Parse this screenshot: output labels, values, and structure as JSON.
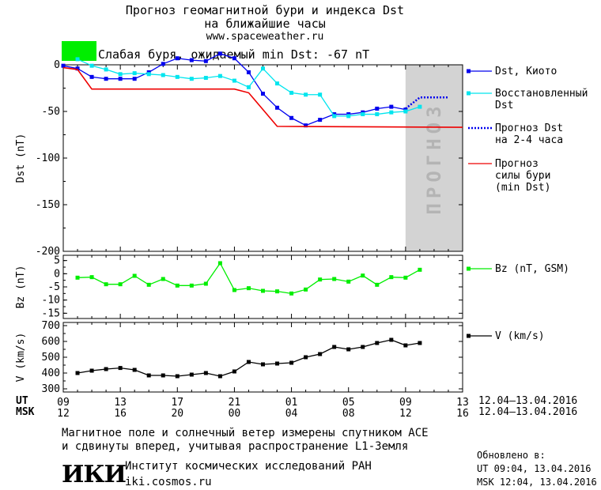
{
  "header": {
    "title_line1": "Прогноз геомагнитной бури и индекса Dst",
    "title_line2": "на ближайшие часы",
    "url": "www.spaceweather.ru"
  },
  "storm": {
    "label": "Слабая буря, ожидаемый min Dst: -67 nT",
    "color": "#00ee00"
  },
  "forecast_band_text": "ПРОГНОЗ",
  "bottom_note": {
    "line1": "Магнитное поле и солнечный ветер измерены спутником ACE",
    "line2": "и сдвинуты вперед, учитывая распространение L1-Земля"
  },
  "institute": {
    "logo": "ИКИ",
    "name": "Институт космических исследований РАН",
    "url": "iki.cosmos.ru"
  },
  "updated": {
    "label": "Обновлено в:",
    "ut": "UT  09:04, 13.04.2016",
    "msk": "MSK 12:04, 13.04.2016"
  },
  "time_axis": {
    "ut_label": "UT",
    "msk_label": "MSK",
    "ut_ticks": [
      "09",
      "13",
      "17",
      "21",
      "01",
      "05",
      "09",
      "13"
    ],
    "msk_ticks": [
      "12",
      "16",
      "20",
      "00",
      "04",
      "08",
      "12",
      "16"
    ],
    "ut_range": "12.04–13.04.2016",
    "msk_range": "12.04–13.04.2016"
  },
  "chart_data": [
    {
      "type": "line",
      "ylabel": "Dst (nT)",
      "ylim": [
        -200,
        0
      ],
      "yticks": [
        0,
        -50,
        -100,
        -150,
        -200
      ],
      "xlim": [
        0,
        28
      ],
      "forecast_band": [
        24,
        28
      ],
      "series": [
        {
          "name": "Dst, Киото",
          "color": "#0000ee",
          "style": "line-square",
          "x": [
            0,
            1,
            2,
            3,
            4,
            5,
            6,
            7,
            8,
            9,
            10,
            11,
            12,
            13,
            14,
            15,
            16,
            17,
            18,
            19,
            20,
            21,
            22,
            23,
            24
          ],
          "y": [
            -1,
            -4,
            -13,
            -15,
            -15,
            -15,
            -8,
            1,
            7,
            5,
            4,
            12,
            7,
            -8,
            -31,
            -46,
            -57,
            -65,
            -59,
            -53,
            -53,
            -51,
            -47,
            -45,
            -48
          ]
        },
        {
          "name": "Восстановленный Dst",
          "color": "#00e5ee",
          "style": "line-square",
          "x": [
            1,
            2,
            3,
            4,
            5,
            6,
            7,
            8,
            9,
            10,
            11,
            12,
            13,
            14,
            15,
            16,
            17,
            18,
            19,
            20,
            21,
            22,
            23,
            24,
            25
          ],
          "y": [
            6,
            -1,
            -5,
            -10,
            -9,
            -10,
            -11,
            -13,
            -15,
            -14,
            -12,
            -17,
            -24,
            -4,
            -20,
            -30,
            -32,
            -32,
            -55,
            -55,
            -53,
            -53,
            -51,
            -50,
            -45
          ]
        },
        {
          "name": "Прогноз Dst на 2-4 часа",
          "color": "#0000ee",
          "style": "dotted",
          "x": [
            24,
            25,
            26,
            27
          ],
          "y": [
            -47,
            -35,
            -35,
            -35
          ]
        },
        {
          "name": "Прогноз силы бури (min Dst)",
          "color": "#ee0000",
          "style": "line",
          "x": [
            0,
            1,
            2,
            12,
            13,
            14,
            15,
            28
          ],
          "y": [
            -3,
            -5,
            -26,
            -26,
            -30,
            -48,
            -66,
            -67
          ]
        }
      ]
    },
    {
      "type": "line",
      "ylabel": "Bz (nT)",
      "ylim": [
        -17,
        7
      ],
      "yticks": [
        5,
        0,
        -5,
        -10,
        -15
      ],
      "xlim": [
        0,
        28
      ],
      "series": [
        {
          "name": "Bz (nT, GSM)",
          "color": "#00ee00",
          "style": "line-square",
          "x": [
            1,
            2,
            3,
            4,
            5,
            6,
            7,
            8,
            9,
            10,
            11,
            12,
            13,
            14,
            15,
            16,
            17,
            18,
            19,
            20,
            21,
            22,
            23,
            24,
            25
          ],
          "y": [
            -1.5,
            -1.3,
            -4,
            -4,
            -0.8,
            -4.2,
            -2,
            -4.5,
            -4.5,
            -3.8,
            4,
            -6.2,
            -5.5,
            -6.5,
            -6.7,
            -7.5,
            -6,
            -2.2,
            -2,
            -3,
            -0.7,
            -4.2,
            -1.3,
            -1.5,
            1.5
          ]
        }
      ]
    },
    {
      "type": "line",
      "ylabel": "V (km/s)",
      "ylim": [
        280,
        720
      ],
      "yticks": [
        700,
        600,
        500,
        400,
        300
      ],
      "xlim": [
        0,
        28
      ],
      "series": [
        {
          "name": "V (km/s)",
          "color": "#000000",
          "style": "line-square",
          "x": [
            1,
            2,
            3,
            4,
            5,
            6,
            7,
            8,
            9,
            10,
            11,
            12,
            13,
            14,
            15,
            16,
            17,
            18,
            19,
            20,
            21,
            22,
            23,
            24,
            25
          ],
          "y": [
            400,
            415,
            425,
            432,
            420,
            385,
            385,
            380,
            390,
            400,
            380,
            410,
            470,
            455,
            460,
            465,
            500,
            520,
            565,
            550,
            565,
            590,
            610,
            575,
            590
          ]
        }
      ]
    }
  ]
}
